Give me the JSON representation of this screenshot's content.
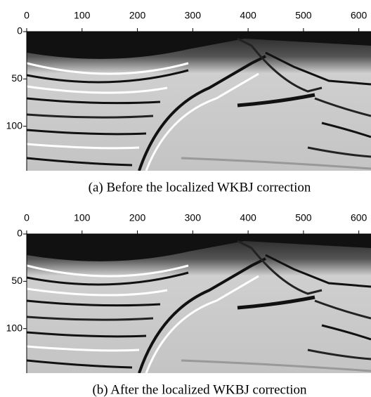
{
  "chart_data": [
    {
      "type": "image",
      "caption": "(a)  Before the localized WKBJ correction",
      "xlim": [
        0,
        622
      ],
      "ylim": [
        0,
        147
      ],
      "xticks": [
        0,
        100,
        200,
        300,
        400,
        500,
        600
      ],
      "yticks": [
        0,
        50,
        100
      ]
    },
    {
      "type": "image",
      "caption": "(b)  After the localized WKBJ correction",
      "xlim": [
        0,
        622
      ],
      "ylim": [
        0,
        147
      ],
      "xticks": [
        0,
        100,
        200,
        300,
        400,
        500,
        600
      ],
      "yticks": [
        0,
        50,
        100
      ]
    }
  ]
}
